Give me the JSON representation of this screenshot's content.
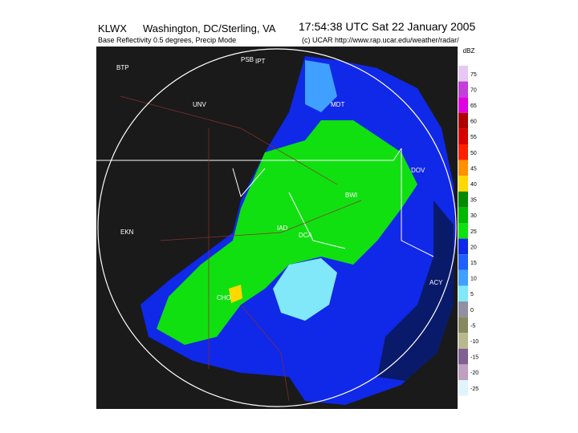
{
  "header": {
    "station": "KLWX",
    "location": "Washington, DC/Sterling, VA",
    "timestamp": "17:54:38 UTC Sat 22 January 2005",
    "product": "Base Reflectivity 0.5 degrees, Precip Mode",
    "credit": "(c) UCAR http://www.rap.ucar.edu/weather/radar/"
  },
  "legend": {
    "unit": "dBZ",
    "levels": [
      {
        "label": "75",
        "color": "#e6c8f5"
      },
      {
        "label": "70",
        "color": "#c040d8"
      },
      {
        "label": "65",
        "color": "#e000e0"
      },
      {
        "label": "60",
        "color": "#b00000"
      },
      {
        "label": "55",
        "color": "#d80000"
      },
      {
        "label": "50",
        "color": "#ff2000"
      },
      {
        "label": "45",
        "color": "#ff9000"
      },
      {
        "label": "40",
        "color": "#ffd800"
      },
      {
        "label": "35",
        "color": "#008a00"
      },
      {
        "label": "30",
        "color": "#00b800"
      },
      {
        "label": "25",
        "color": "#10e010"
      },
      {
        "label": "20",
        "color": "#1028e8"
      },
      {
        "label": "15",
        "color": "#2060ff"
      },
      {
        "label": "10",
        "color": "#40a0ff"
      },
      {
        "label": "5",
        "color": "#80e8f8"
      },
      {
        "label": "0",
        "color": "#9090a0"
      },
      {
        "label": "-5",
        "color": "#888860"
      },
      {
        "label": "-10",
        "color": "#b8b890"
      },
      {
        "label": "-15",
        "color": "#806090"
      },
      {
        "label": "-20",
        "color": "#c0a0c0"
      },
      {
        "label": "-25",
        "color": "#e0f4fc"
      }
    ]
  },
  "stations": [
    {
      "label": "PSB"
    },
    {
      "label": "IPT"
    },
    {
      "label": "BTP"
    },
    {
      "label": "UNV"
    },
    {
      "label": "MDT"
    },
    {
      "label": "BWI"
    },
    {
      "label": "DCA"
    },
    {
      "label": "IAD"
    },
    {
      "label": "CHO"
    },
    {
      "label": "EKN"
    },
    {
      "label": "DOV"
    },
    {
      "label": "ACY"
    }
  ]
}
